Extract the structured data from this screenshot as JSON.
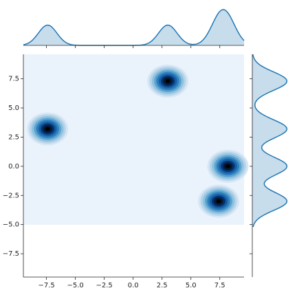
{
  "chart_data": {
    "type": "kde-joint",
    "clusters": [
      {
        "x": -7.4,
        "y": 3.2
      },
      {
        "x": 3.0,
        "y": 7.3
      },
      {
        "x": 8.2,
        "y": 0.0
      },
      {
        "x": 7.4,
        "y": -3.0
      }
    ],
    "color": "#1f77b4",
    "xlim": [
      -9.5,
      9.6
    ],
    "ylim": [
      -9.5,
      9.6
    ],
    "xticks": [
      {
        "value": -7.5,
        "label": "−7.5"
      },
      {
        "value": -5,
        "label": "−5.0"
      },
      {
        "value": -2.5,
        "label": "−2.5"
      },
      {
        "value": 0,
        "label": "0.0"
      },
      2.5,
      {
        "value": 5,
        "label": "5.0"
      },
      7.5
    ],
    "yticks": [
      {
        "value": -7.5,
        "label": "−7.5"
      },
      {
        "value": -5,
        "label": "−5.0"
      },
      {
        "value": -2.5,
        "label": "−2.5"
      },
      {
        "value": 0,
        "label": "0.0"
      },
      2.5,
      {
        "value": 5,
        "label": "5.0"
      },
      7.5
    ]
  }
}
